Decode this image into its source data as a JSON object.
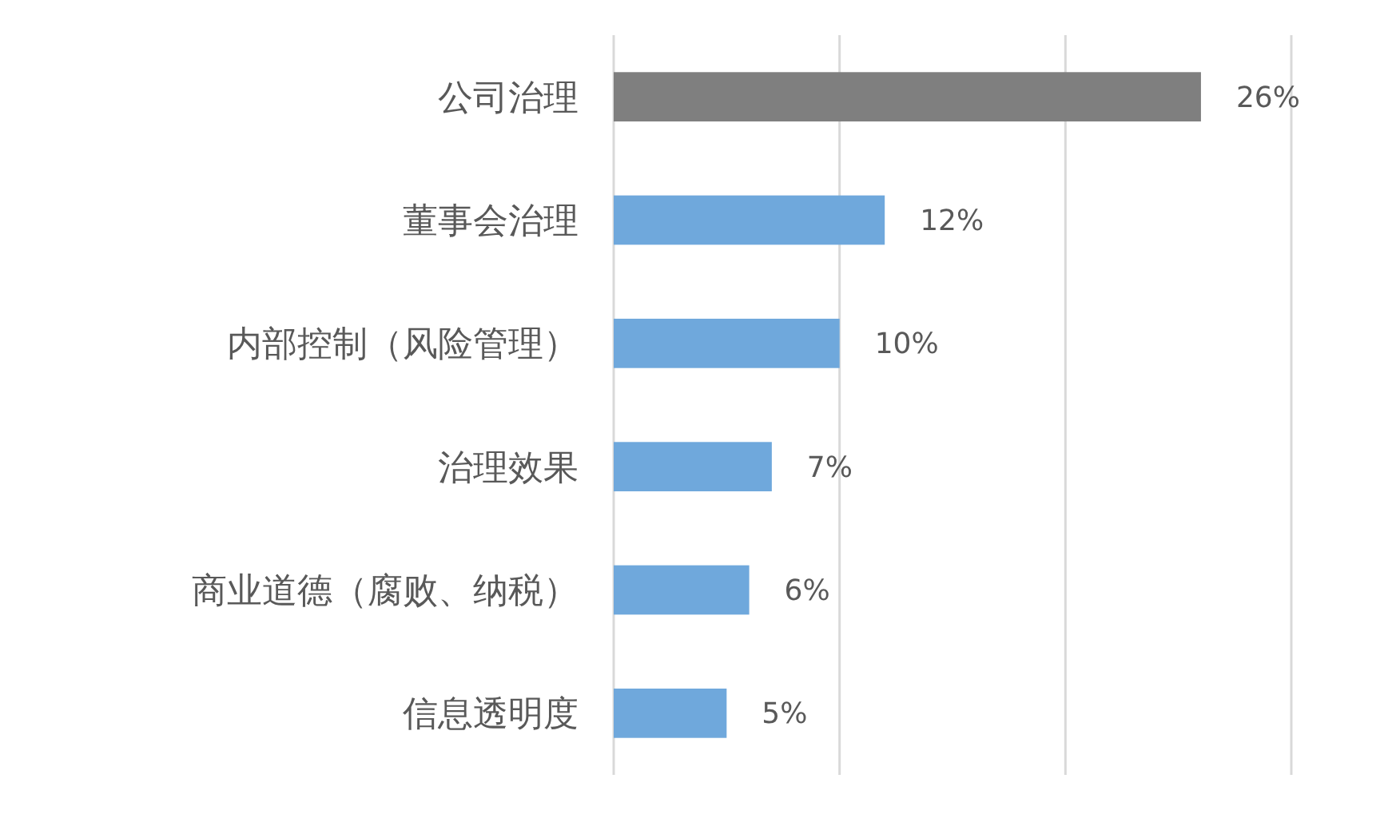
{
  "chart_data": {
    "type": "bar",
    "orientation": "horizontal",
    "categories": [
      "公司治理",
      "董事会治理",
      "内部控制（风险管理）",
      "治理效果",
      "商业道德（腐败、纳税）",
      "信息透明度"
    ],
    "values": [
      26,
      12,
      10,
      7,
      6,
      5
    ],
    "colors": [
      "#7f7f7f",
      "#6fa8dc",
      "#6fa8dc",
      "#6fa8dc",
      "#6fa8dc",
      "#6fa8dc"
    ],
    "xlim": [
      0,
      30
    ],
    "xticks": [
      {
        "value": 0,
        "label": null
      },
      {
        "value": 10,
        "label": null
      },
      {
        "value": 20,
        "label": null
      },
      {
        "value": 30,
        "label": null
      }
    ],
    "value_labels": [
      "26%",
      "12%",
      "10%",
      "7%",
      "6%",
      "5%"
    ],
    "grid": "x",
    "tick_labels": "y"
  }
}
